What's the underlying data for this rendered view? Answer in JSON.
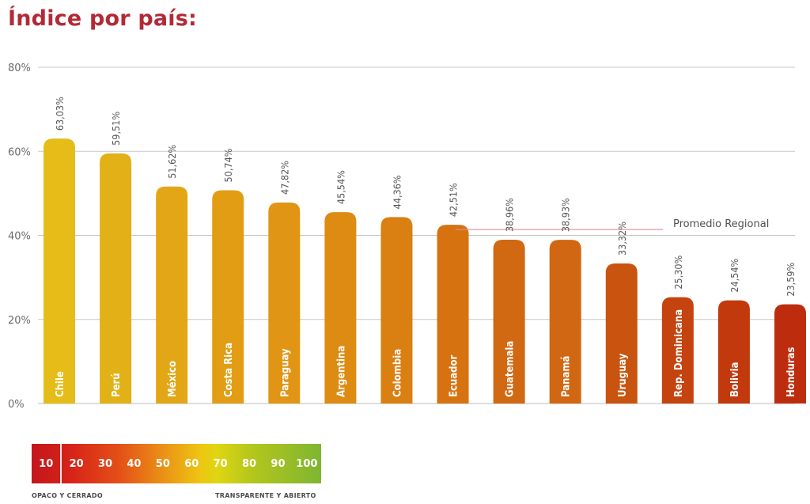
{
  "title": "Índice por país:",
  "chart_data": {
    "type": "bar",
    "categories": [
      "Chile",
      "Perú",
      "México",
      "Costa Rica",
      "Paraguay",
      "Argentina",
      "Colombia",
      "Ecuador",
      "Guatemala",
      "Panamá",
      "Uruguay",
      "Rep. Dominicana",
      "Bolivia",
      "Honduras"
    ],
    "values": [
      63.03,
      59.51,
      51.62,
      50.74,
      47.82,
      45.54,
      44.36,
      42.51,
      38.96,
      38.93,
      33.32,
      25.3,
      24.54,
      23.59
    ],
    "value_labels": [
      "63,03%",
      "59,51%",
      "51,62%",
      "50,74%",
      "47,82%",
      "45,54%",
      "44,36%",
      "42,51%",
      "38,96%",
      "38,93%",
      "33,32%",
      "25,30%",
      "24,54%",
      "23,59%"
    ],
    "bar_colors": [
      "#e5bc18",
      "#e2b017",
      "#e3a616",
      "#e29d15",
      "#e09514",
      "#dd8b13",
      "#da7f12",
      "#d77211",
      "#d16812",
      "#d16712",
      "#c9540f",
      "#c5430f",
      "#c2390e",
      "#bd2d0d"
    ],
    "ylim": [
      0,
      80
    ],
    "yticks": [
      0,
      20,
      40,
      60,
      80
    ],
    "ytick_labels": [
      "0%",
      "20%",
      "40%",
      "60%",
      "80%"
    ],
    "grid": true,
    "reference_line": {
      "label": "Promedio Regional",
      "value": 41.4,
      "color": "#e58a9a"
    }
  },
  "legend": {
    "scale_labels": [
      "10",
      "20",
      "30",
      "40",
      "50",
      "60",
      "70",
      "80",
      "90",
      "100"
    ],
    "left_caption": "OPACO Y CERRADO",
    "right_caption": "TRANSPARENTE Y  ABIERTO"
  }
}
